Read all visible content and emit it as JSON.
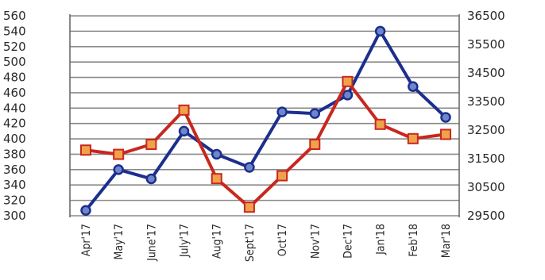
{
  "chart_data": {
    "type": "line",
    "categories": [
      "Apr'17",
      "May'17",
      "June'17",
      "July'17",
      "Aug'17",
      "Sept'17",
      "Oct'17",
      "Nov'17",
      "Dec'17",
      "Jan'18",
      "Feb'18",
      "Mar'18"
    ],
    "series": [
      {
        "axis": "left",
        "color": "#1c2f8f",
        "marker": "circle",
        "values": [
          307,
          360,
          348,
          410,
          380,
          363,
          435,
          433,
          457,
          540,
          468,
          428
        ]
      },
      {
        "axis": "right",
        "color": "#c8271f",
        "marker": "square",
        "values": [
          31800,
          31650,
          32000,
          33200,
          30800,
          29800,
          30900,
          32000,
          34200,
          32700,
          32200,
          32350
        ]
      }
    ],
    "ylim_left": [
      300,
      560
    ],
    "yticks_left": [
      300,
      320,
      340,
      360,
      380,
      400,
      420,
      440,
      460,
      480,
      500,
      520,
      540,
      560
    ],
    "ylim_right": [
      29500,
      36500
    ],
    "yticks_right": [
      29500,
      30500,
      31500,
      32500,
      33500,
      34500,
      35500,
      36500
    ],
    "grid": true
  }
}
